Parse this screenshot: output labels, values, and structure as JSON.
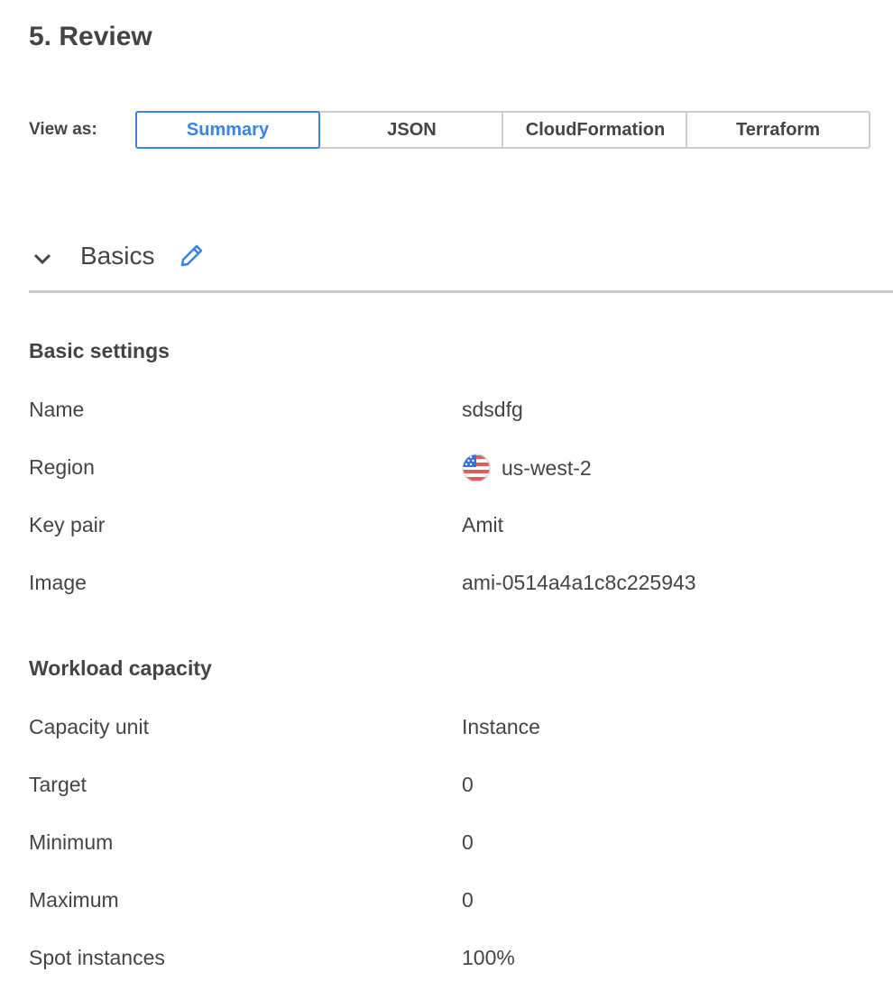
{
  "page_title": "5. Review",
  "view_as": {
    "label": "View as:",
    "options": [
      "Summary",
      "JSON",
      "CloudFormation",
      "Terraform"
    ],
    "selected": "Summary"
  },
  "accent_color": "#3b82e8",
  "section": {
    "title": "Basics",
    "expanded": true,
    "groups": [
      {
        "title": "Basic settings",
        "rows": [
          {
            "label": "Name",
            "value": "sdsdfg"
          },
          {
            "label": "Region",
            "value": "us-west-2",
            "icon": "us-flag-icon"
          },
          {
            "label": "Key pair",
            "value": "Amit"
          },
          {
            "label": "Image",
            "value": "ami-0514a4a1c8c225943"
          }
        ]
      },
      {
        "title": "Workload capacity",
        "rows": [
          {
            "label": "Capacity unit",
            "value": "Instance"
          },
          {
            "label": "Target",
            "value": "0"
          },
          {
            "label": "Minimum",
            "value": "0"
          },
          {
            "label": "Maximum",
            "value": "0"
          },
          {
            "label": "Spot instances",
            "value": "100%"
          }
        ]
      }
    ]
  }
}
